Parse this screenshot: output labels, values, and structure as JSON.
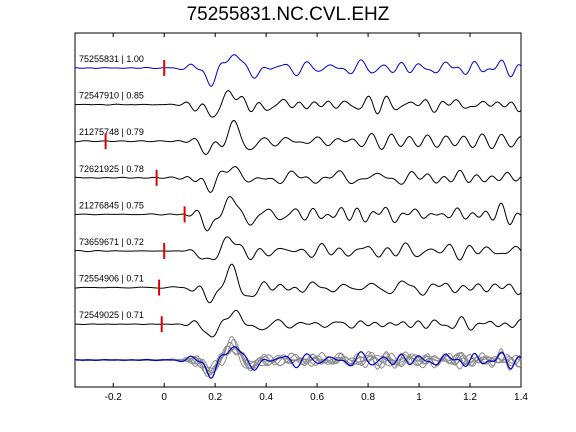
{
  "chart_data": {
    "type": "line",
    "title": "75255831.NC.CVL.EHZ",
    "xlim": [
      -0.35,
      1.4
    ],
    "x_ticks": [
      -0.2,
      0,
      0.2,
      0.4,
      0.6,
      0.8,
      1,
      1.2,
      1.4
    ],
    "x_tick_labels": [
      "-0.2",
      "0",
      "0.2",
      "0.4",
      "0.6",
      "0.8",
      "1",
      "1.2",
      "1.4"
    ],
    "grid": false,
    "pick_color": "#e00000",
    "reference_color": "#0000cc",
    "trace_color": "#000000",
    "stack_color": "#8c8c8c",
    "traces": [
      {
        "label": "75255831 | 1.00",
        "pick_time": 0.0,
        "reference": true
      },
      {
        "label": "72547910 | 0.85",
        "pick_time": null,
        "reference": false
      },
      {
        "label": "21275748 | 0.79",
        "pick_time": -0.23,
        "reference": false
      },
      {
        "label": "72621925 | 0.78",
        "pick_time": -0.03,
        "reference": false
      },
      {
        "label": "21276845 | 0.75",
        "pick_time": 0.08,
        "reference": false
      },
      {
        "label": "73659671 | 0.72",
        "pick_time": 0.0,
        "reference": false
      },
      {
        "label": "72554906 | 0.71",
        "pick_time": -0.02,
        "reference": false
      },
      {
        "label": "72549025 | 0.71",
        "pick_time": -0.01,
        "reference": false
      }
    ]
  }
}
